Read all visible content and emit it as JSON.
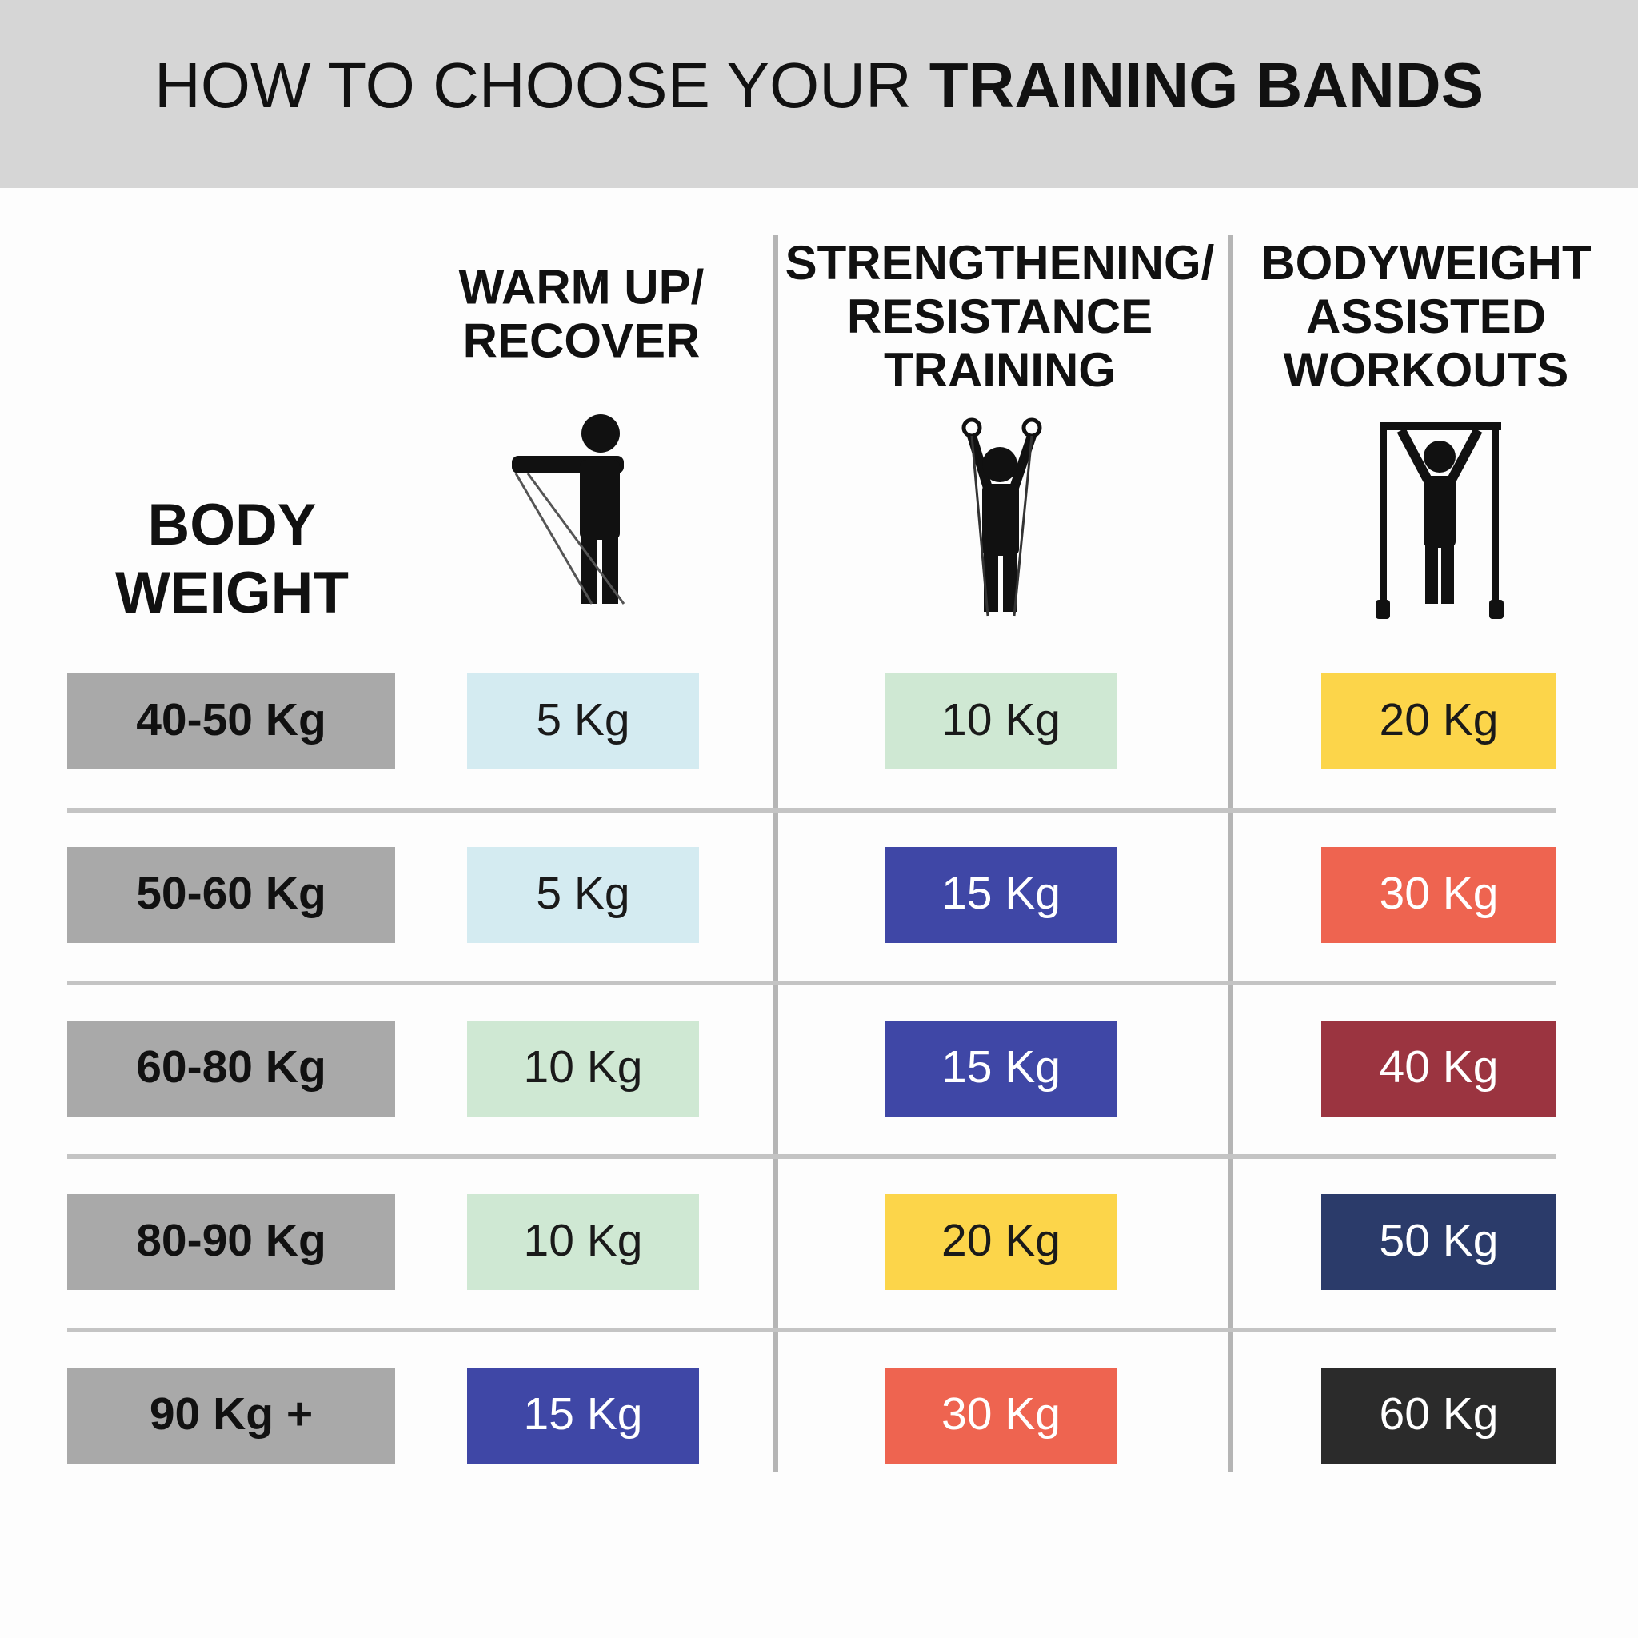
{
  "header": {
    "title_regular": "HOW TO CHOOSE YOUR",
    "title_bold": "TRAINING BANDS"
  },
  "columns": [
    {
      "lines": [
        "BODY",
        "WEIGHT"
      ]
    },
    {
      "lines": [
        "WARM UP/",
        "RECOVER"
      ]
    },
    {
      "lines": [
        "STRENGTHENING/",
        "RESISTANCE",
        "TRAINING"
      ]
    },
    {
      "lines": [
        "BODYWEIGHT",
        "ASSISTED",
        "WORKOUTS"
      ]
    }
  ],
  "weight_color": "#a9a9a9",
  "rows": [
    {
      "weight": "40-50 Kg",
      "cells": [
        {
          "text": "5 Kg",
          "color": "#d4ebf1",
          "text_color": "#1a1a1a"
        },
        {
          "text": "10 Kg",
          "color": "#cfe8d3",
          "text_color": "#1a1a1a"
        },
        {
          "text": "20 Kg",
          "color": "#fcd54a",
          "text_color": "#1a1a1a"
        }
      ]
    },
    {
      "weight": "50-60 Kg",
      "cells": [
        {
          "text": "5 Kg",
          "color": "#d4ebf1",
          "text_color": "#1a1a1a"
        },
        {
          "text": "15 Kg",
          "color": "#3f47a6",
          "text_color": "#ffffff"
        },
        {
          "text": "30 Kg",
          "color": "#ee6450",
          "text_color": "#ffffff"
        }
      ]
    },
    {
      "weight": "60-80 Kg",
      "cells": [
        {
          "text": "10 Kg",
          "color": "#cfe8d3",
          "text_color": "#1a1a1a"
        },
        {
          "text": "15 Kg",
          "color": "#3f47a6",
          "text_color": "#ffffff"
        },
        {
          "text": "40 Kg",
          "color": "#9b3440",
          "text_color": "#ffffff"
        }
      ]
    },
    {
      "weight": "80-90 Kg",
      "cells": [
        {
          "text": "10 Kg",
          "color": "#cfe8d3",
          "text_color": "#1a1a1a"
        },
        {
          "text": "20 Kg",
          "color": "#fcd54a",
          "text_color": "#1a1a1a"
        },
        {
          "text": "50 Kg",
          "color": "#2b3b6a",
          "text_color": "#ffffff"
        }
      ]
    },
    {
      "weight": "90 Kg +",
      "cells": [
        {
          "text": "15 Kg",
          "color": "#3f47a6",
          "text_color": "#ffffff"
        },
        {
          "text": "30 Kg",
          "color": "#ee6450",
          "text_color": "#ffffff"
        },
        {
          "text": "60 Kg",
          "color": "#2b2b2b",
          "text_color": "#ffffff"
        }
      ]
    }
  ]
}
